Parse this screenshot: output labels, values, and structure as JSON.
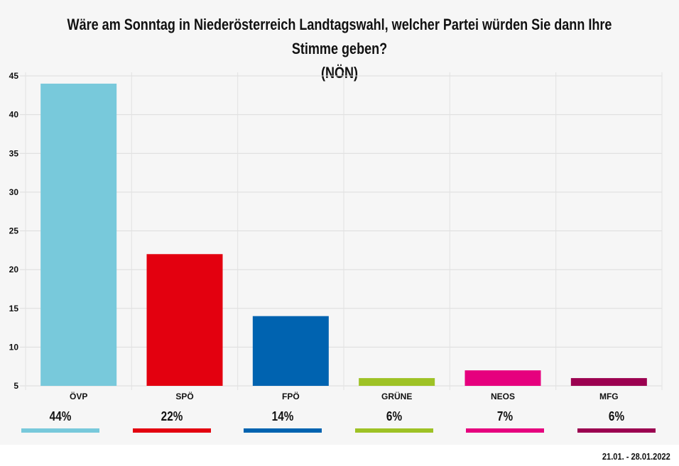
{
  "chart_data": {
    "type": "bar",
    "title": "Wäre am Sonntag in Niederösterreich Landtagswahl, welcher Partei würden Sie dann Ihre Stimme geben?",
    "subtitle": "(NÖN)",
    "categories": [
      "ÖVP",
      "SPÖ",
      "FPÖ",
      "GRÜNE",
      "NEOS",
      "MFG"
    ],
    "values": [
      44,
      22,
      14,
      6,
      7,
      6
    ],
    "value_labels": [
      "44%",
      "22%",
      "14%",
      "6%",
      "7%",
      "6%"
    ],
    "colors": [
      "#78c9db",
      "#e3000f",
      "#0063b0",
      "#9ec225",
      "#e6007e",
      "#9b0050"
    ],
    "ylim": [
      5,
      45
    ],
    "yticks": [
      5,
      10,
      15,
      20,
      25,
      30,
      35,
      40,
      45
    ],
    "grid": true,
    "date_range": "21.01. - 28.01.2022"
  }
}
